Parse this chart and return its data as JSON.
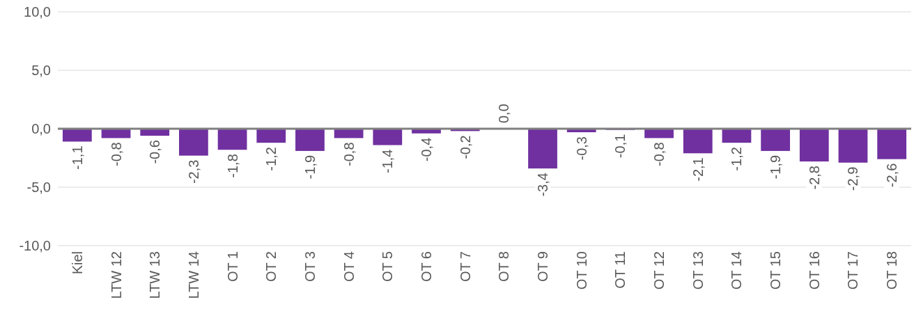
{
  "chart_data": {
    "type": "bar",
    "categories": [
      "Kiel",
      "LTW 12",
      "LTW 13",
      "LTW 14",
      "OT 1",
      "OT 2",
      "OT 3",
      "OT 4",
      "OT 5",
      "OT 6",
      "OT 7",
      "OT 8",
      "OT 9",
      "OT 10",
      "OT 11",
      "OT 12",
      "OT 13",
      "OT 14",
      "OT 15",
      "OT 16",
      "OT 17",
      "OT 18"
    ],
    "values": [
      -1.1,
      -0.8,
      -0.6,
      -2.3,
      -1.8,
      -1.2,
      -1.9,
      -0.8,
      -1.4,
      -0.4,
      -0.2,
      0.0,
      -3.4,
      -0.3,
      -0.1,
      -0.8,
      -2.1,
      -1.2,
      -1.9,
      -2.8,
      -2.9,
      -2.6
    ],
    "color": "#7030a0",
    "ylim": [
      -10,
      10
    ],
    "yticks": [
      {
        "value": -10,
        "label": "-10,0"
      },
      {
        "value": -5,
        "label": "-5,0"
      },
      {
        "value": 0,
        "label": "0,0"
      },
      {
        "value": 5,
        "label": "5,0"
      },
      {
        "value": 10,
        "label": "10,0"
      }
    ],
    "grid": "y",
    "value_labels": [
      "-1,1",
      "-0,8",
      "-0,6",
      "-2,3",
      "-1,8",
      "-1,2",
      "-1,9",
      "-0,8",
      "-1,4",
      "-0,4",
      "-0,2",
      "0,0",
      "-3,4",
      "-0,3",
      "-0,1",
      "-0,8",
      "-2,1",
      "-1,2",
      "-1,9",
      "-2,8",
      "-2,9",
      "-2,6"
    ]
  }
}
